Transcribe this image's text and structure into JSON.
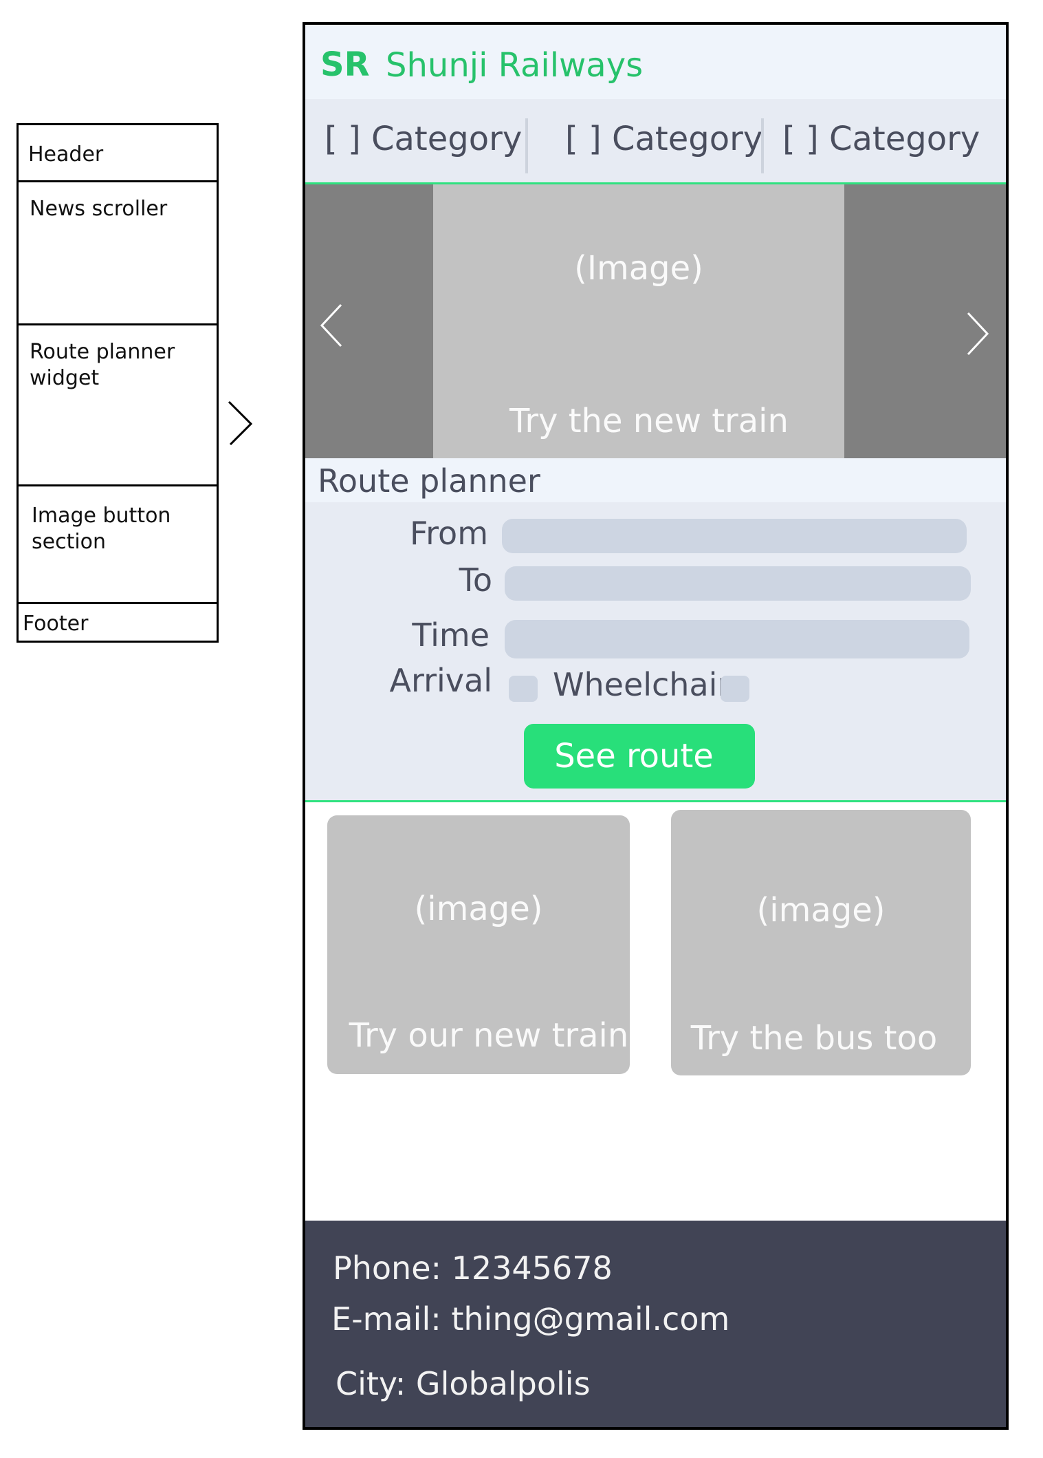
{
  "outline": {
    "sections": [
      "Header",
      "News scroller",
      "Route planner widget",
      "Image button section",
      "Footer"
    ]
  },
  "header": {
    "logo": "SR",
    "brand": "Shunji Railways"
  },
  "nav": {
    "items": [
      "[ ] Category",
      "[ ] Category",
      "[ ] Category"
    ]
  },
  "news": {
    "image_label": "(Image)",
    "caption": "Try the new train"
  },
  "route_planner": {
    "title": "Route planner",
    "from_label": "From",
    "to_label": "To",
    "time_label": "Time",
    "arrival_label": "Arrival",
    "wheelchair_label": "Wheelchair",
    "button_label": "See route"
  },
  "tiles": [
    {
      "image_label": "(image)",
      "caption": "Try our new train"
    },
    {
      "image_label": "(image)",
      "caption": "Try the bus too"
    }
  ],
  "footer": {
    "phone": "Phone: 12345678",
    "email": "E-mail: thing@gmail.com",
    "city": "City: Globalpolis"
  },
  "colors": {
    "accent": "#27c26b",
    "button": "#28df7a",
    "footer_bg": "#414455",
    "placeholder_gray": "#c2c2c2"
  }
}
